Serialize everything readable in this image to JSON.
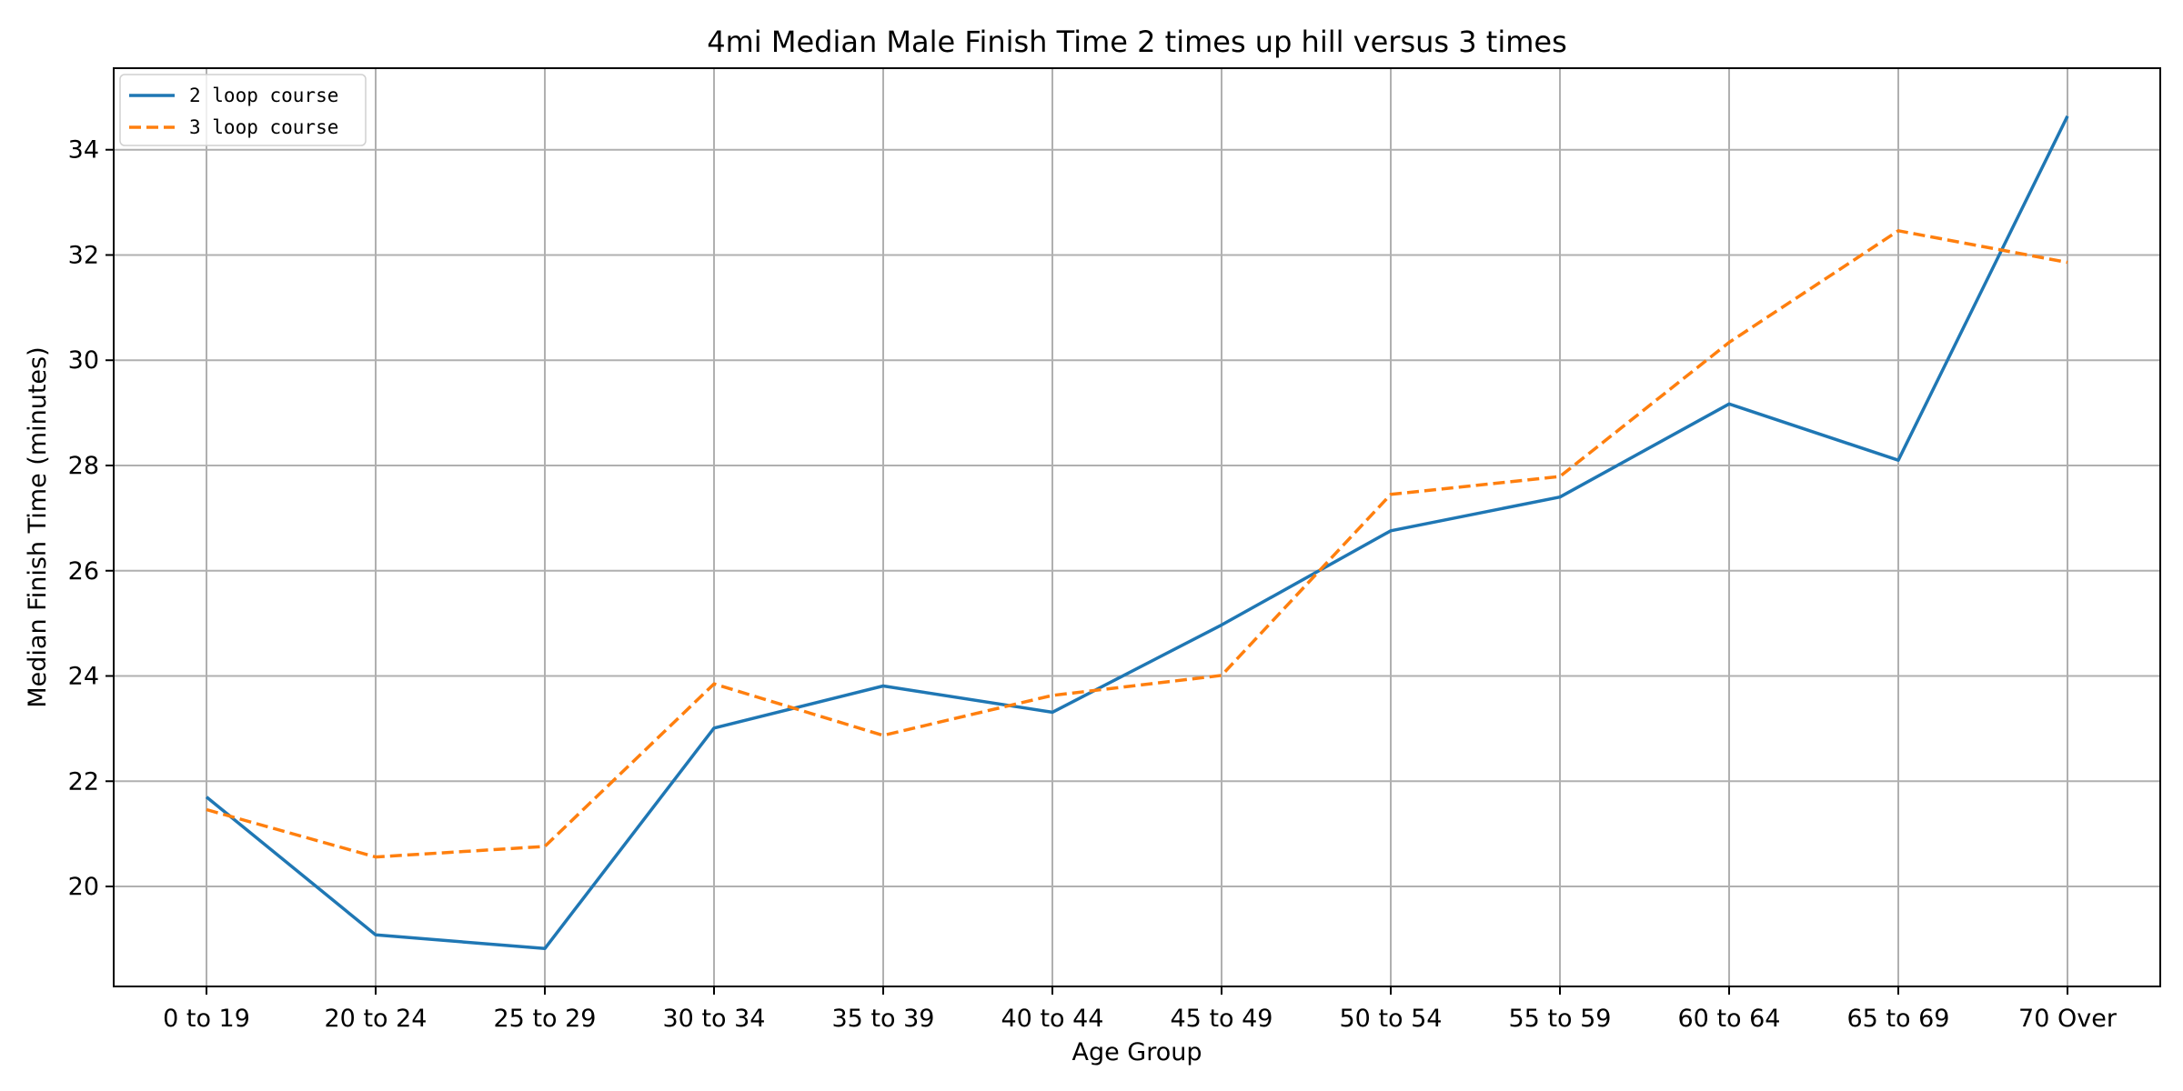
{
  "chart_data": {
    "type": "line",
    "title": "4mi Median Male Finish Time 2 times up hill versus 3 times",
    "xlabel": "Age Group",
    "ylabel": "Median Finish Time (minutes)",
    "categories": [
      "0 to 19",
      "20 to 24",
      "25 to 29",
      "30 to 34",
      "35 to 39",
      "40 to 44",
      "45 to 49",
      "50 to 54",
      "55 to 59",
      "60 to 64",
      "65 to 69",
      "70 Over"
    ],
    "ylim": [
      18.1,
      35.55
    ],
    "yticks": [
      20,
      22,
      24,
      26,
      28,
      30,
      32,
      34
    ],
    "grid": true,
    "legend_position": "top-left",
    "series": [
      {
        "name": "2 loop course",
        "color": "#1f77b4",
        "dash": "solid",
        "values": [
          21.7,
          19.08,
          18.82,
          23.01,
          23.81,
          23.31,
          24.97,
          26.76,
          27.4,
          29.17,
          28.1,
          34.64
        ]
      },
      {
        "name": "3 loop course",
        "color": "#ff7f0e",
        "dash": "dashed",
        "values": [
          21.46,
          20.56,
          20.76,
          23.85,
          22.87,
          23.63,
          24.01,
          27.45,
          27.79,
          30.34,
          32.46,
          31.86
        ]
      }
    ]
  }
}
